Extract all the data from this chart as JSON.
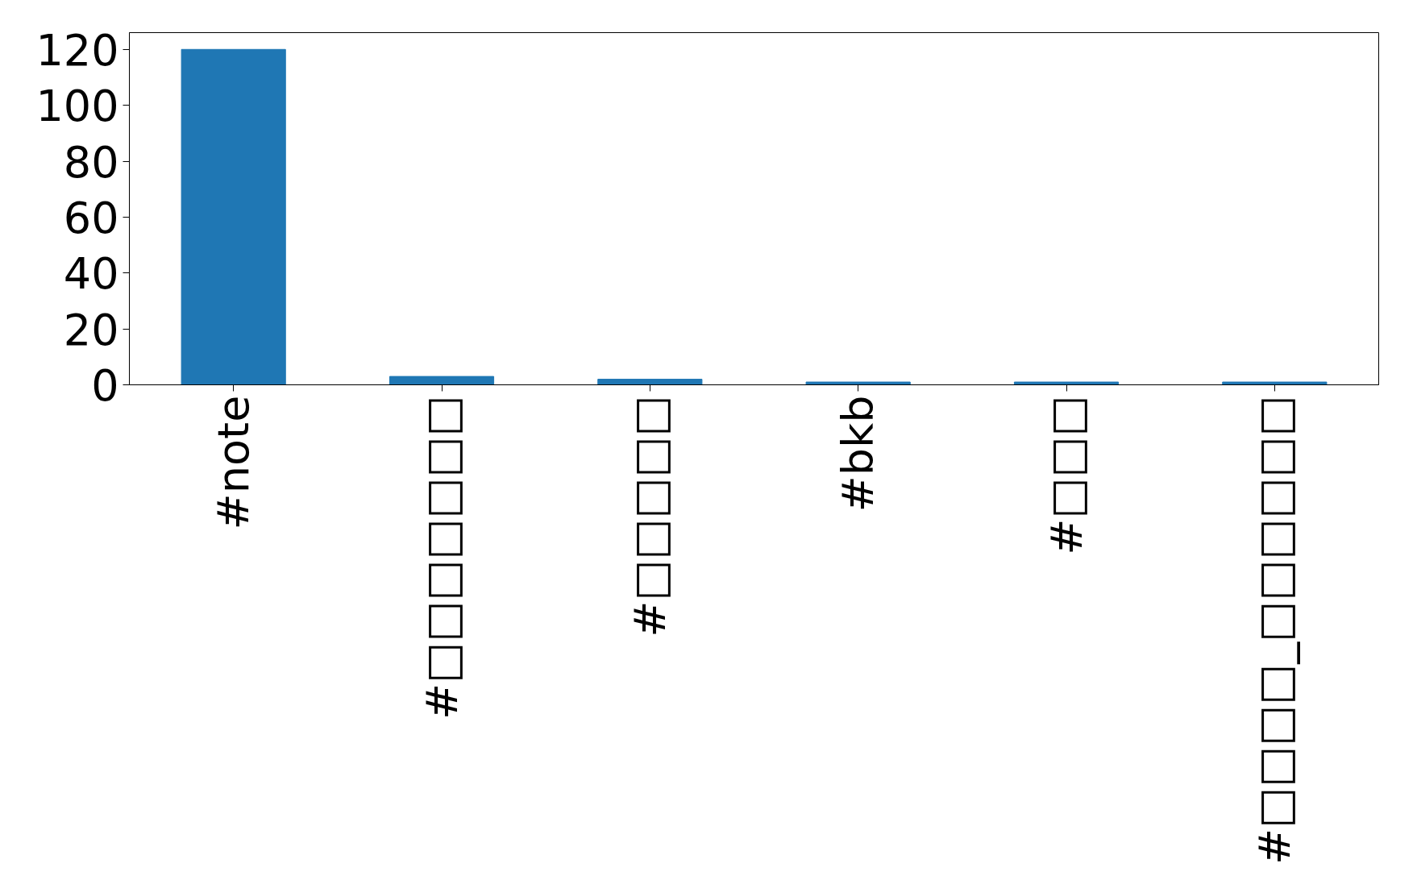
{
  "chart_data": {
    "type": "bar",
    "categories": [
      "#note",
      "#□□□□□□□",
      "#□□□□□",
      "#bkb",
      "#□□□",
      "#□□□□_□□□□□□"
    ],
    "values": [
      120,
      3,
      2,
      1,
      1,
      1
    ],
    "color": "#1f77b4",
    "ylim": [
      0,
      126
    ],
    "yticks": [
      0,
      20,
      40,
      60,
      80,
      100,
      120
    ],
    "grid": false
  }
}
